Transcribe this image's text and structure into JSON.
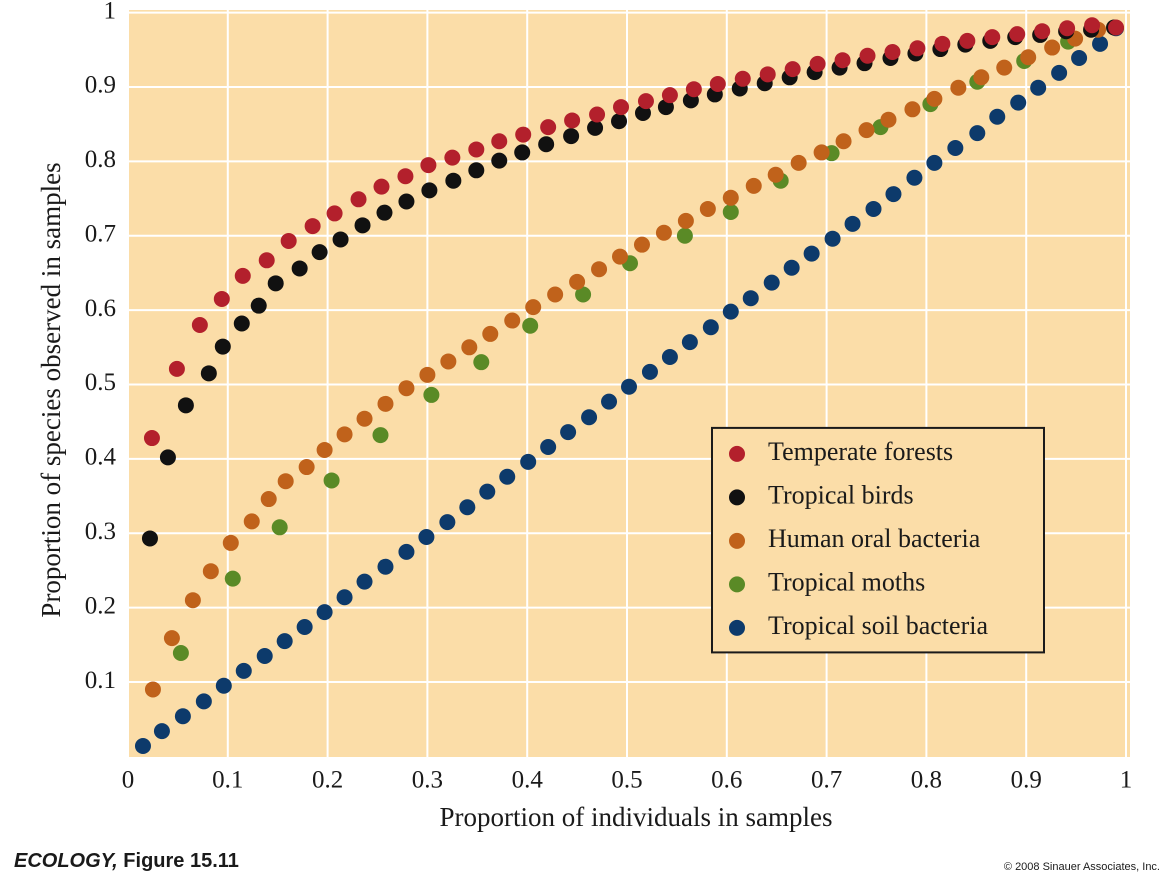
{
  "chart_data": {
    "type": "scatter",
    "xlabel": "Proportion of individuals in samples",
    "ylabel": "Proportion of species observed in samples",
    "xlim": [
      0,
      1
    ],
    "ylim": [
      0,
      1
    ],
    "xticks": [
      0,
      0.1,
      0.2,
      0.3,
      0.4,
      0.5,
      0.6,
      0.7,
      0.8,
      0.9,
      1
    ],
    "yticks": [
      0.1,
      0.2,
      0.3,
      0.4,
      0.5,
      0.6,
      0.7,
      0.8,
      0.9,
      1
    ],
    "grid": true,
    "legend": "lower right",
    "source_book": "ECOLOGY,",
    "source_figure": "Figure 15.11",
    "copyright": "© 2008 Sinauer Associates, Inc.",
    "series": [
      {
        "name": "Temperate forests",
        "color": "#b3202c",
        "x": [
          0.024,
          0.049,
          0.072,
          0.094,
          0.115,
          0.139,
          0.161,
          0.185,
          0.207,
          0.231,
          0.254,
          0.278,
          0.301,
          0.325,
          0.349,
          0.372,
          0.396,
          0.421,
          0.445,
          0.47,
          0.494,
          0.519,
          0.543,
          0.567,
          0.591,
          0.616,
          0.641,
          0.666,
          0.691,
          0.716,
          0.741,
          0.766,
          0.791,
          0.816,
          0.841,
          0.866,
          0.891,
          0.916,
          0.941,
          0.966,
          0.99
        ],
        "values": [
          0.428,
          0.521,
          0.58,
          0.615,
          0.646,
          0.667,
          0.693,
          0.713,
          0.73,
          0.749,
          0.766,
          0.78,
          0.795,
          0.805,
          0.816,
          0.827,
          0.836,
          0.846,
          0.855,
          0.863,
          0.873,
          0.881,
          0.889,
          0.897,
          0.904,
          0.911,
          0.917,
          0.924,
          0.931,
          0.936,
          0.942,
          0.947,
          0.952,
          0.958,
          0.962,
          0.967,
          0.971,
          0.975,
          0.979,
          0.983,
          0.98
        ]
      },
      {
        "name": "Tropical birds",
        "color": "#111111",
        "x": [
          0.022,
          0.04,
          0.058,
          0.081,
          0.095,
          0.114,
          0.131,
          0.148,
          0.172,
          0.192,
          0.213,
          0.235,
          0.257,
          0.279,
          0.302,
          0.326,
          0.349,
          0.372,
          0.395,
          0.419,
          0.444,
          0.468,
          0.492,
          0.516,
          0.539,
          0.564,
          0.588,
          0.613,
          0.638,
          0.663,
          0.688,
          0.713,
          0.738,
          0.764,
          0.789,
          0.814,
          0.839,
          0.864,
          0.889,
          0.914,
          0.94,
          0.965,
          0.988
        ],
        "values": [
          0.293,
          0.402,
          0.472,
          0.515,
          0.551,
          0.582,
          0.606,
          0.636,
          0.656,
          0.678,
          0.695,
          0.714,
          0.731,
          0.746,
          0.761,
          0.774,
          0.788,
          0.801,
          0.812,
          0.823,
          0.834,
          0.845,
          0.854,
          0.865,
          0.873,
          0.882,
          0.89,
          0.898,
          0.905,
          0.913,
          0.92,
          0.926,
          0.932,
          0.939,
          0.945,
          0.951,
          0.957,
          0.962,
          0.967,
          0.97,
          0.975,
          0.977,
          0.98
        ]
      },
      {
        "name": "Human oral bacteria",
        "color": "#c0621b",
        "x": [
          0.025,
          0.044,
          0.065,
          0.083,
          0.103,
          0.124,
          0.141,
          0.158,
          0.179,
          0.197,
          0.217,
          0.237,
          0.258,
          0.279,
          0.3,
          0.321,
          0.342,
          0.363,
          0.385,
          0.406,
          0.428,
          0.45,
          0.472,
          0.493,
          0.515,
          0.537,
          0.559,
          0.581,
          0.604,
          0.627,
          0.649,
          0.672,
          0.695,
          0.717,
          0.74,
          0.762,
          0.786,
          0.808,
          0.832,
          0.855,
          0.878,
          0.902,
          0.926,
          0.949,
          0.972
        ],
        "values": [
          0.09,
          0.159,
          0.21,
          0.249,
          0.287,
          0.316,
          0.346,
          0.37,
          0.389,
          0.412,
          0.433,
          0.454,
          0.474,
          0.495,
          0.513,
          0.531,
          0.55,
          0.568,
          0.586,
          0.604,
          0.621,
          0.638,
          0.655,
          0.672,
          0.688,
          0.704,
          0.72,
          0.736,
          0.751,
          0.767,
          0.782,
          0.798,
          0.812,
          0.827,
          0.842,
          0.856,
          0.87,
          0.884,
          0.899,
          0.913,
          0.926,
          0.94,
          0.953,
          0.965,
          0.977
        ]
      },
      {
        "name": "Tropical moths",
        "color": "#5a8a26",
        "x": [
          0.053,
          0.105,
          0.152,
          0.204,
          0.253,
          0.304,
          0.354,
          0.403,
          0.456,
          0.503,
          0.558,
          0.604,
          0.654,
          0.705,
          0.754,
          0.804,
          0.851,
          0.898,
          0.942
        ],
        "values": [
          0.139,
          0.239,
          0.308,
          0.371,
          0.432,
          0.486,
          0.53,
          0.579,
          0.621,
          0.663,
          0.7,
          0.732,
          0.774,
          0.811,
          0.846,
          0.877,
          0.907,
          0.935,
          0.961
        ]
      },
      {
        "name": "Tropical soil bacteria",
        "color": "#0d3a6b",
        "x": [
          0.015,
          0.034,
          0.055,
          0.076,
          0.096,
          0.116,
          0.137,
          0.157,
          0.177,
          0.197,
          0.217,
          0.237,
          0.258,
          0.279,
          0.299,
          0.32,
          0.34,
          0.36,
          0.38,
          0.401,
          0.421,
          0.441,
          0.462,
          0.482,
          0.502,
          0.523,
          0.543,
          0.563,
          0.584,
          0.604,
          0.624,
          0.645,
          0.665,
          0.685,
          0.706,
          0.726,
          0.747,
          0.767,
          0.788,
          0.808,
          0.829,
          0.851,
          0.871,
          0.892,
          0.912,
          0.933,
          0.953,
          0.974,
          0.99
        ],
        "values": [
          0.014,
          0.034,
          0.054,
          0.074,
          0.095,
          0.115,
          0.135,
          0.155,
          0.174,
          0.194,
          0.214,
          0.235,
          0.255,
          0.275,
          0.295,
          0.315,
          0.335,
          0.356,
          0.376,
          0.396,
          0.416,
          0.436,
          0.456,
          0.477,
          0.497,
          0.517,
          0.537,
          0.557,
          0.577,
          0.598,
          0.616,
          0.637,
          0.657,
          0.676,
          0.696,
          0.716,
          0.736,
          0.756,
          0.778,
          0.798,
          0.818,
          0.838,
          0.86,
          0.879,
          0.899,
          0.919,
          0.939,
          0.958,
          0.979
        ]
      }
    ]
  }
}
